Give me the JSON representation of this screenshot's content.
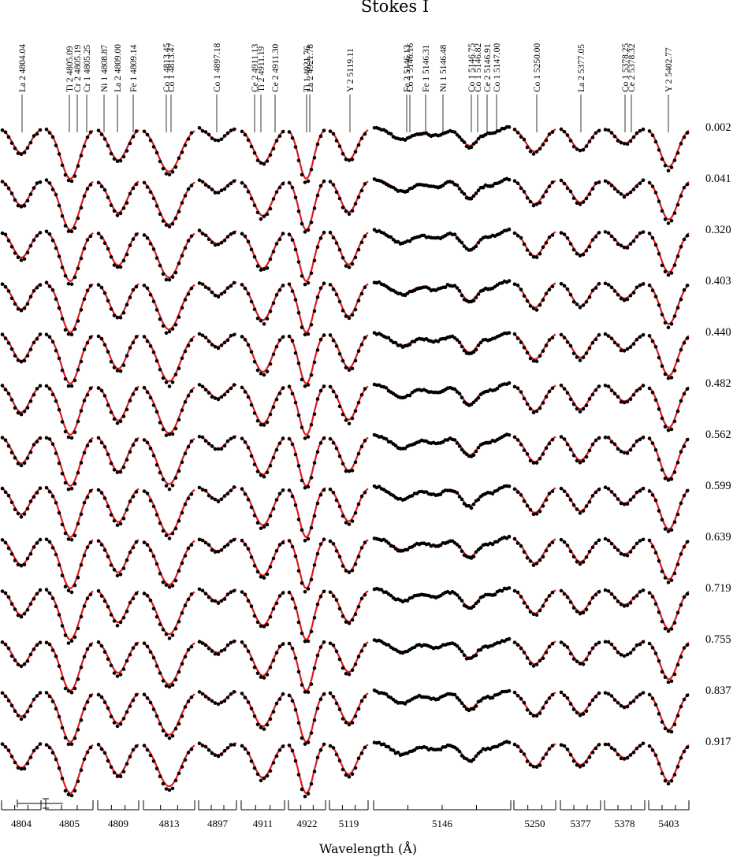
{
  "chart_data": {
    "type": "line",
    "title": "Stokes I",
    "xlabel": "Wavelength (Å)",
    "ylabel": "",
    "grid": false,
    "legend": "none",
    "colors": {
      "observed": "#000000",
      "model": "#e41a1c"
    },
    "series_kinds": [
      "observed (points)",
      "model (red line)"
    ],
    "rotation_phases": [
      "0.002",
      "0.041",
      "0.320",
      "0.403",
      "0.440",
      "0.482",
      "0.562",
      "0.599",
      "0.639",
      "0.719",
      "0.755",
      "0.837",
      "0.917"
    ],
    "line_depths": [
      0.5,
      0.55,
      0.6,
      0.62,
      0.64,
      0.66,
      0.65,
      0.63,
      0.6,
      0.55,
      0.52,
      0.5,
      0.51
    ],
    "panels": [
      {
        "center": "4804",
        "lines": [
          "La 2 4804.04"
        ],
        "depth": 0.36
      },
      {
        "center": "4805",
        "lines": [
          "Ti 2 4805.09",
          "Cr 2 4805.19",
          "Cr 1 4805.25"
        ],
        "depth": 0.72
      },
      {
        "center": "4809",
        "lines": [
          "Ni 1 4808.87",
          "La 2 4809.00",
          "Fe 1 4809.14"
        ],
        "depth": 0.46
      },
      {
        "center": "4813",
        "lines": [
          "Co 1 4813.45",
          "Co 1 4813.47"
        ],
        "depth": 0.62
      },
      {
        "center": "4897",
        "lines": [
          "Co 1 4897.18"
        ],
        "depth": 0.18
      },
      {
        "center": "4911",
        "lines": [
          "Ce 2 4911.13",
          "Ti 2 4911.19",
          "Ce 2 4911.30"
        ],
        "depth": 0.5
      },
      {
        "center": "4922",
        "lines": [
          "Ti 1 4921.76",
          "La 2 4921.78"
        ],
        "depth": 0.72
      },
      {
        "center": "5119",
        "lines": [
          "Y 2 5119.11"
        ],
        "depth": 0.45
      },
      {
        "center": "5146",
        "lines": [
          "Fe 2 5146.13",
          "Co 1 5146.16",
          "Fe 1 5146.31",
          "Ni 1 5146.48",
          "Co 1 5146.75",
          "Co 1 5146.82",
          "Ce 2 5146.91",
          "Co 1 5147.00"
        ],
        "depth": 0.3
      },
      {
        "center": "5250",
        "lines": [
          "Co 1 5250.00"
        ],
        "depth": 0.34
      },
      {
        "center": "5377",
        "lines": [
          "La 2 5377.05"
        ],
        "depth": 0.32
      },
      {
        "center": "5378",
        "lines": [
          "Co 1 5378.25",
          "Ce 2 5378.32"
        ],
        "depth": 0.22
      },
      {
        "center": "5403",
        "lines": [
          "Y 2 5402.77"
        ],
        "depth": 0.55
      }
    ]
  }
}
